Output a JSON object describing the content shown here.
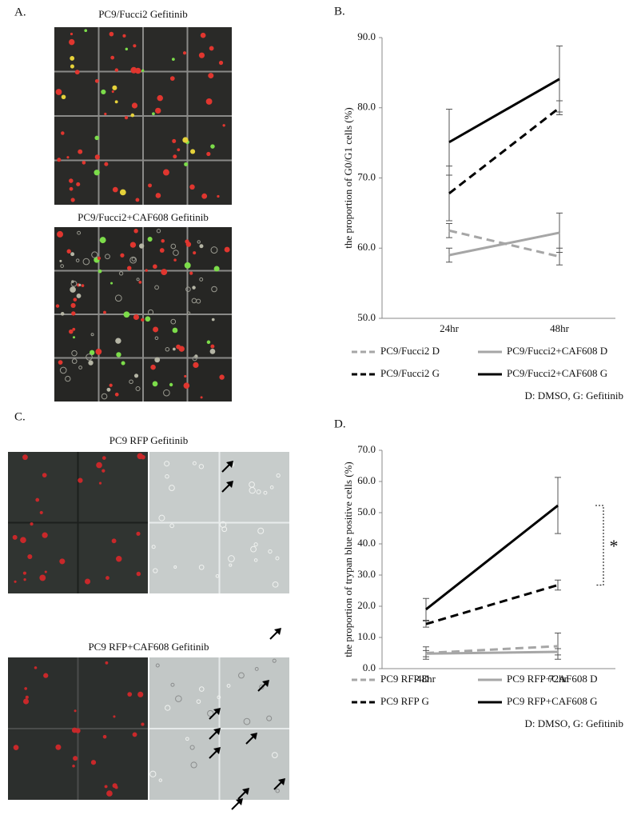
{
  "panels": {
    "a": {
      "label": "A.",
      "titles": [
        "PC9/Fucci2  Gefitinib",
        "PC9/Fucci2+CAF608  Gefitinib"
      ]
    },
    "c": {
      "label": "C.",
      "titles": [
        "PC9 RFP Gefitinib",
        "PC9 RFP+CAF608 Gefitinib"
      ]
    }
  },
  "chart_data": [
    {
      "type": "line",
      "label": "B.",
      "y_label": "the proportion  of G0/G1  cells (%)",
      "categories": [
        "24hr",
        "48hr"
      ],
      "ylim": [
        50,
        90
      ],
      "yticks": [
        {
          "value": 50,
          "label": "50.0"
        },
        {
          "value": 60,
          "label": "60.0"
        },
        {
          "value": 70,
          "label": "70.0"
        },
        {
          "value": 80,
          "label": "80.0"
        },
        {
          "value": 90,
          "label": "90.0"
        }
      ],
      "series": [
        {
          "name": "PC9/Fucci2  D",
          "color": "#a6a6a6",
          "style": "dashed",
          "values": [
            62.5,
            58.8
          ],
          "errors": [
            1.0,
            1.2
          ]
        },
        {
          "name": "PC9/Fucci2+CAF608  D",
          "color": "#a6a6a6",
          "style": "solid",
          "values": [
            59.0,
            62.2
          ],
          "errors": [
            1.0,
            2.8
          ]
        },
        {
          "name": "PC9/Fucci2  G",
          "color": "#000000",
          "style": "dashed",
          "values": [
            67.8,
            80.0
          ],
          "errors": [
            3.9,
            1.0
          ]
        },
        {
          "name": "PC9/Fucci2+CAF608  G",
          "color": "#000000",
          "style": "solid",
          "values": [
            75.1,
            84.1
          ],
          "errors": [
            4.7,
            4.7
          ]
        }
      ],
      "note": "D: DMSO, G: Gefitinib"
    },
    {
      "type": "line",
      "label": "D.",
      "y_label": "the proportion of trypan blue positive cells (%)",
      "categories": [
        "48hr",
        "72hr"
      ],
      "ylim": [
        0,
        70
      ],
      "yticks": [
        {
          "value": 0,
          "label": "0.0"
        },
        {
          "value": 10,
          "label": "10.0"
        },
        {
          "value": 20,
          "label": "20.0"
        },
        {
          "value": 30,
          "label": "30.0"
        },
        {
          "value": 40,
          "label": "40.0"
        },
        {
          "value": 50,
          "label": "50.0"
        },
        {
          "value": 60,
          "label": "60.0"
        },
        {
          "value": 70,
          "label": "70.0"
        }
      ],
      "series": [
        {
          "name": "PC9 RFP D",
          "color": "#a6a6a6",
          "style": "dashed",
          "values": [
            5.0,
            7.2
          ],
          "errors": [
            2.0,
            4.2
          ]
        },
        {
          "name": "PC9 RFP+CAF608  D",
          "color": "#a6a6a6",
          "style": "solid",
          "values": [
            4.8,
            5.4
          ],
          "errors": [
            1.0,
            1.0
          ]
        },
        {
          "name": "PC9 RFP G",
          "color": "#000000",
          "style": "dashed",
          "values": [
            14.3,
            26.8
          ],
          "errors": [
            1.0,
            1.6
          ]
        },
        {
          "name": "PC9 RFP+CAF608  G",
          "color": "#000000",
          "style": "solid",
          "values": [
            19.0,
            52.3
          ],
          "errors": [
            3.5,
            9.0
          ]
        }
      ],
      "annotation": "*",
      "note": "D: DMSO, G: Gefitinib"
    }
  ]
}
